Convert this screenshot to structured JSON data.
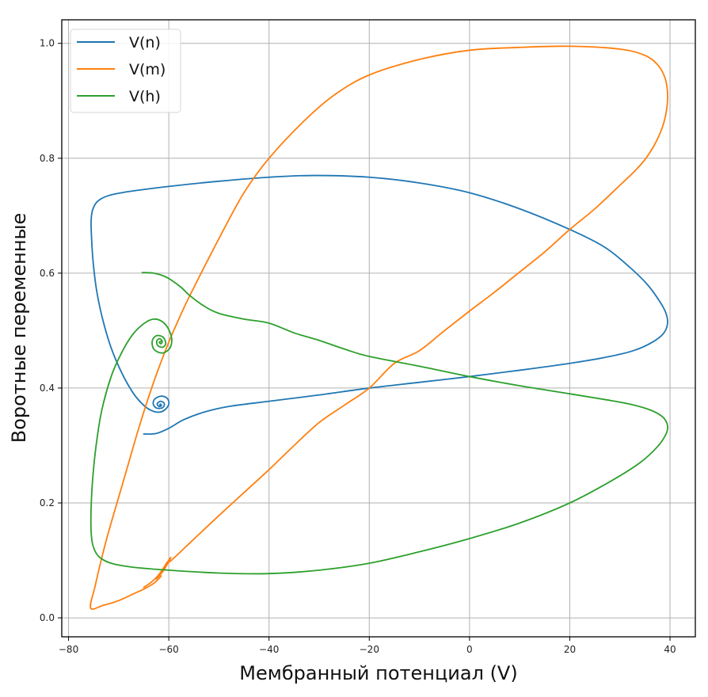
{
  "chart_data": {
    "type": "line",
    "title": "",
    "xlabel": "Мембранный потенциал (V)",
    "ylabel": "Воротные переменные",
    "xlim": [
      -81.35,
      45.05
    ],
    "ylim": [
      -0.033,
      1.041
    ],
    "grid": true,
    "legend_position": "top-left",
    "x_ticks": [
      -80,
      -60,
      -40,
      -20,
      0,
      20,
      40
    ],
    "x_tick_labels": [
      "−80",
      "−60",
      "−40",
      "−20",
      "0",
      "20",
      "40"
    ],
    "y_ticks": [
      0.0,
      0.2,
      0.4,
      0.6,
      0.8,
      1.0
    ],
    "y_tick_labels": [
      "0.0",
      "0.2",
      "0.4",
      "0.6",
      "0.8",
      "1.0"
    ],
    "series": [
      {
        "name": "V(n)",
        "color": "#1f77b4",
        "points": [
          [
            -65,
            0.32
          ],
          [
            -62.5,
            0.321
          ],
          [
            -60,
            0.33
          ],
          [
            -57,
            0.345
          ],
          [
            -53,
            0.358
          ],
          [
            -48,
            0.368
          ],
          [
            -40,
            0.377
          ],
          [
            -30,
            0.388
          ],
          [
            -20,
            0.4
          ],
          [
            -10,
            0.41
          ],
          [
            0,
            0.42
          ],
          [
            10,
            0.431
          ],
          [
            20,
            0.443
          ],
          [
            28,
            0.455
          ],
          [
            33,
            0.466
          ],
          [
            36.5,
            0.48
          ],
          [
            38.7,
            0.495
          ],
          [
            39.5,
            0.512
          ],
          [
            39.2,
            0.53
          ],
          [
            38,
            0.55
          ],
          [
            35.5,
            0.58
          ],
          [
            32,
            0.61
          ],
          [
            27,
            0.645
          ],
          [
            20,
            0.676
          ],
          [
            10,
            0.712
          ],
          [
            0,
            0.74
          ],
          [
            -10,
            0.757
          ],
          [
            -20,
            0.767
          ],
          [
            -31,
            0.77
          ],
          [
            -40,
            0.767
          ],
          [
            -50,
            0.76
          ],
          [
            -60,
            0.751
          ],
          [
            -68,
            0.742
          ],
          [
            -72,
            0.735
          ],
          [
            -74.2,
            0.725
          ],
          [
            -75.2,
            0.71
          ],
          [
            -75.5,
            0.69
          ],
          [
            -75.4,
            0.66
          ],
          [
            -75.1,
            0.62
          ],
          [
            -74.4,
            0.57
          ],
          [
            -73.2,
            0.52
          ],
          [
            -71.5,
            0.47
          ],
          [
            -69.3,
            0.425
          ],
          [
            -67,
            0.39
          ],
          [
            -65,
            0.37
          ],
          [
            -63.5,
            0.361
          ],
          [
            -62,
            0.358
          ],
          [
            -60.8,
            0.362
          ],
          [
            -60,
            0.372
          ],
          [
            -60.3,
            0.382
          ],
          [
            -61.5,
            0.386
          ],
          [
            -62.8,
            0.381
          ],
          [
            -63.1,
            0.372
          ],
          [
            -62.4,
            0.365
          ],
          [
            -61.2,
            0.366
          ],
          [
            -60.9,
            0.373
          ],
          [
            -61.6,
            0.377
          ],
          [
            -62.3,
            0.373
          ],
          [
            -62,
            0.368
          ],
          [
            -61.5,
            0.369
          ],
          [
            -61.6,
            0.372
          ],
          [
            -61.8,
            0.371
          ],
          [
            -61.7,
            0.37
          ]
        ]
      },
      {
        "name": "V(m)",
        "color": "#ff7f0e",
        "points": [
          [
            -65,
            0.053
          ],
          [
            -63.5,
            0.062
          ],
          [
            -62,
            0.075
          ],
          [
            -60.5,
            0.094
          ],
          [
            -59.6,
            0.105
          ],
          [
            -61,
            0.083
          ],
          [
            -62.5,
            0.068
          ],
          [
            -61.5,
            0.08
          ],
          [
            -60.3,
            0.097
          ],
          [
            -59.5,
            0.1
          ],
          [
            -55,
            0.137
          ],
          [
            -50,
            0.178
          ],
          [
            -45,
            0.218
          ],
          [
            -40,
            0.258
          ],
          [
            -35,
            0.3
          ],
          [
            -30,
            0.34
          ],
          [
            -25,
            0.37
          ],
          [
            -20,
            0.4
          ],
          [
            -15,
            0.443
          ],
          [
            -10,
            0.465
          ],
          [
            -5,
            0.5
          ],
          [
            0,
            0.534
          ],
          [
            5,
            0.567
          ],
          [
            10,
            0.602
          ],
          [
            15,
            0.637
          ],
          [
            20,
            0.676
          ],
          [
            25,
            0.712
          ],
          [
            30,
            0.753
          ],
          [
            33,
            0.778
          ],
          [
            35.2,
            0.8
          ],
          [
            37.3,
            0.83
          ],
          [
            38.7,
            0.86
          ],
          [
            39.4,
            0.89
          ],
          [
            39.5,
            0.915
          ],
          [
            39,
            0.94
          ],
          [
            37.6,
            0.962
          ],
          [
            35,
            0.979
          ],
          [
            30,
            0.99
          ],
          [
            20,
            0.995
          ],
          [
            10,
            0.993
          ],
          [
            0,
            0.988
          ],
          [
            -10,
            0.972
          ],
          [
            -20,
            0.945
          ],
          [
            -27,
            0.91
          ],
          [
            -33,
            0.865
          ],
          [
            -40,
            0.8
          ],
          [
            -45,
            0.74
          ],
          [
            -50,
            0.66
          ],
          [
            -55.8,
            0.561
          ],
          [
            -58,
            0.52
          ],
          [
            -60,
            0.48
          ],
          [
            -62,
            0.435
          ],
          [
            -64,
            0.385
          ],
          [
            -66,
            0.33
          ],
          [
            -68,
            0.27
          ],
          [
            -70,
            0.21
          ],
          [
            -72,
            0.15
          ],
          [
            -73.5,
            0.1
          ],
          [
            -74.7,
            0.055
          ],
          [
            -75.6,
            0.017
          ],
          [
            -73,
            0.022
          ],
          [
            -70,
            0.03
          ],
          [
            -67,
            0.042
          ],
          [
            -65,
            0.05
          ],
          [
            -63,
            0.06
          ],
          [
            -61.5,
            0.073
          ]
        ]
      },
      {
        "name": "V(h)",
        "color": "#2ca02c",
        "points": [
          [
            -65.3,
            0.601
          ],
          [
            -63,
            0.6
          ],
          [
            -61,
            0.595
          ],
          [
            -59.5,
            0.588
          ],
          [
            -57.5,
            0.575
          ],
          [
            -55.8,
            0.561
          ],
          [
            -53,
            0.543
          ],
          [
            -50,
            0.53
          ],
          [
            -45,
            0.52
          ],
          [
            -40,
            0.513
          ],
          [
            -35,
            0.496
          ],
          [
            -30,
            0.483
          ],
          [
            -25,
            0.468
          ],
          [
            -20,
            0.455
          ],
          [
            -10,
            0.438
          ],
          [
            0,
            0.42
          ],
          [
            10,
            0.404
          ],
          [
            20,
            0.39
          ],
          [
            27,
            0.38
          ],
          [
            32,
            0.372
          ],
          [
            36,
            0.362
          ],
          [
            38.5,
            0.35
          ],
          [
            39.5,
            0.335
          ],
          [
            39.2,
            0.32
          ],
          [
            37.5,
            0.298
          ],
          [
            34,
            0.27
          ],
          [
            28,
            0.237
          ],
          [
            20,
            0.2
          ],
          [
            10,
            0.165
          ],
          [
            0,
            0.138
          ],
          [
            -10,
            0.115
          ],
          [
            -20,
            0.095
          ],
          [
            -30,
            0.083
          ],
          [
            -40,
            0.077
          ],
          [
            -50,
            0.078
          ],
          [
            -60,
            0.083
          ],
          [
            -67,
            0.088
          ],
          [
            -71.5,
            0.095
          ],
          [
            -74,
            0.107
          ],
          [
            -75.1,
            0.125
          ],
          [
            -75.5,
            0.15
          ],
          [
            -75.5,
            0.19
          ],
          [
            -75.2,
            0.24
          ],
          [
            -74.5,
            0.3
          ],
          [
            -73.4,
            0.36
          ],
          [
            -71.5,
            0.42
          ],
          [
            -69.5,
            0.46
          ],
          [
            -67.3,
            0.492
          ],
          [
            -65,
            0.512
          ],
          [
            -63,
            0.52
          ],
          [
            -61.2,
            0.515
          ],
          [
            -59.9,
            0.5
          ],
          [
            -59.4,
            0.482
          ],
          [
            -60,
            0.467
          ],
          [
            -61.5,
            0.461
          ],
          [
            -63,
            0.468
          ],
          [
            -63.3,
            0.482
          ],
          [
            -62.5,
            0.491
          ],
          [
            -61.2,
            0.489
          ],
          [
            -60.6,
            0.478
          ],
          [
            -61.2,
            0.471
          ],
          [
            -62.2,
            0.474
          ],
          [
            -62.4,
            0.482
          ],
          [
            -61.8,
            0.486
          ],
          [
            -61.3,
            0.481
          ],
          [
            -61.6,
            0.477
          ],
          [
            -61.9,
            0.48
          ],
          [
            -61.6,
            0.481
          ]
        ]
      }
    ]
  }
}
